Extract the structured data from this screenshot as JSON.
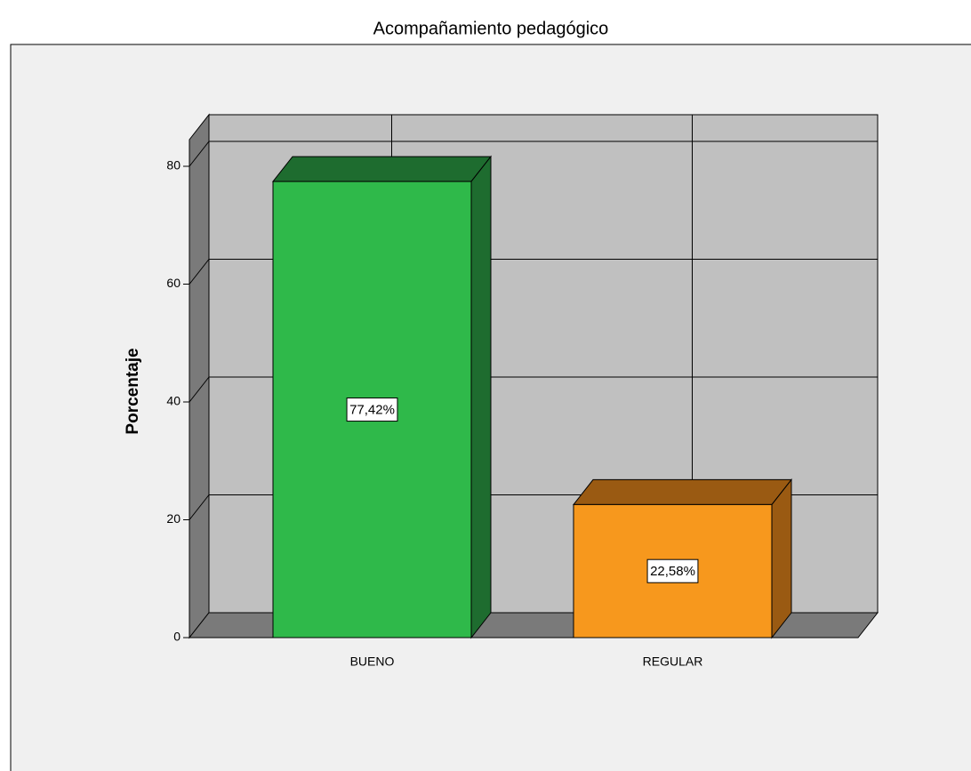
{
  "chart_data": {
    "type": "bar3d",
    "title": "Acompañamiento pedagógico",
    "y_label": "Porcentaje",
    "categories": [
      "BUENO",
      "REGULAR"
    ],
    "values": [
      77.42,
      22.58
    ],
    "value_labels": [
      "77,42%",
      "22,58%"
    ],
    "colors": [
      "#2fb94a",
      "#f7981d"
    ],
    "side_colors": [
      "#1e6c2f",
      "#9a5a12"
    ],
    "ylim": [
      0,
      85
    ],
    "yticks": [
      0,
      20,
      40,
      60,
      80
    ],
    "grid": true
  }
}
